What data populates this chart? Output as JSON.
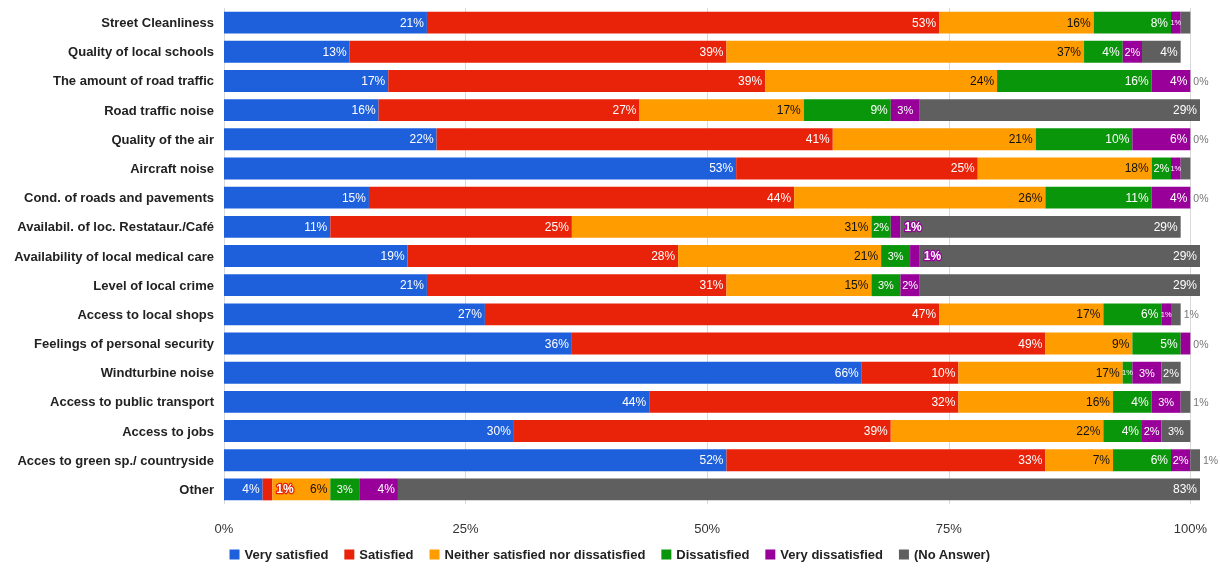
{
  "chart_data": {
    "type": "bar",
    "orientation": "horizontal",
    "stacked": true,
    "categories": [
      "Street Cleanliness",
      "Quality of local schools",
      "The amount of road traffic",
      "Road traffic noise",
      "Quality of the air",
      "Aircraft noise",
      "Cond. of roads and pavements",
      "Availabil. of loc. Restataur./Café",
      "Availability of local medical care",
      "Level of local crime",
      "Access to local shops",
      "Feelings of personal security",
      "Windturbine noise",
      "Access to public transport",
      "Access to jobs",
      "Acces to green sp./ countryside",
      "Other"
    ],
    "series": [
      {
        "name": "Very satisfied",
        "color": "#1e60dc",
        "values": [
          21,
          13,
          17,
          16,
          22,
          53,
          15,
          11,
          19,
          21,
          27,
          36,
          66,
          44,
          30,
          52,
          4
        ],
        "value_labels": [
          "21%",
          "13%",
          "17%",
          "16%",
          "22%",
          "53%",
          "15%",
          "11%",
          "19%",
          "21%",
          "27%",
          "36%",
          "66%",
          "44%",
          "30%",
          "52%",
          "4%"
        ]
      },
      {
        "name": "Satisfied",
        "color": "#e8230a",
        "values": [
          53,
          39,
          39,
          27,
          41,
          25,
          44,
          25,
          28,
          31,
          47,
          49,
          10,
          32,
          39,
          33,
          1
        ],
        "value_labels": [
          "53%",
          "39%",
          "39%",
          "27%",
          "41%",
          "25%",
          "44%",
          "25%",
          "28%",
          "31%",
          "47%",
          "49%",
          "10%",
          "32%",
          "39%",
          "33%",
          "1%"
        ]
      },
      {
        "name": "Neither satisfied nor dissatisfied",
        "color": "#ff9c00",
        "values": [
          16,
          37,
          24,
          17,
          21,
          18,
          26,
          31,
          21,
          15,
          17,
          9,
          17,
          16,
          22,
          7,
          6
        ],
        "value_labels": [
          "16%",
          "37%",
          "24%",
          "17%",
          "21%",
          "18%",
          "26%",
          "31%",
          "21%",
          "15%",
          "17%",
          "9%",
          "17%",
          "16%",
          "22%",
          "7%",
          "6%"
        ]
      },
      {
        "name": "Dissatisfied",
        "color": "#0a960a",
        "values": [
          8,
          4,
          16,
          9,
          10,
          2,
          11,
          2,
          3,
          3,
          6,
          5,
          1,
          4,
          4,
          6,
          3
        ],
        "value_labels": [
          "8%",
          "4%",
          "16%",
          "9%",
          "10%",
          "2%",
          "11%",
          "2%",
          "3%",
          "3%",
          "6%",
          "5%",
          "1%",
          "4%",
          "4%",
          "6%",
          "3%"
        ]
      },
      {
        "name": "Very dissatisfied",
        "color": "#990099",
        "values": [
          1,
          2,
          4,
          3,
          6,
          1,
          4,
          1,
          1,
          2,
          1,
          1,
          3,
          3,
          2,
          2,
          4
        ],
        "value_labels": [
          "1%",
          "2%",
          "4%",
          "3%",
          "6%",
          "1%",
          "4%",
          "1%",
          "1%",
          "2%",
          "1%",
          null,
          "3%",
          "3%",
          "2%",
          "2%",
          "4%"
        ]
      },
      {
        "name": "(No Answer)",
        "color": "#5f5f5f",
        "values": [
          1,
          4,
          0,
          29,
          0,
          1,
          0,
          29,
          29,
          29,
          1,
          0,
          2,
          1,
          3,
          1,
          83
        ],
        "value_labels": [
          null,
          "4%",
          "0%",
          "29%",
          "0%",
          null,
          "0%",
          "29%",
          "29%",
          "29%",
          "1%",
          "0%",
          "2%",
          "1%",
          "3%",
          "1%",
          "83%"
        ]
      }
    ],
    "xlim": [
      0,
      101
    ],
    "xticks": [
      {
        "value": 0,
        "label": "0%"
      },
      {
        "value": 25,
        "label": "25%"
      },
      {
        "value": 50,
        "label": "50%"
      },
      {
        "value": 75,
        "label": "75%"
      },
      {
        "value": 100,
        "label": "100%"
      }
    ],
    "grid": "x",
    "legend": "bottom"
  }
}
